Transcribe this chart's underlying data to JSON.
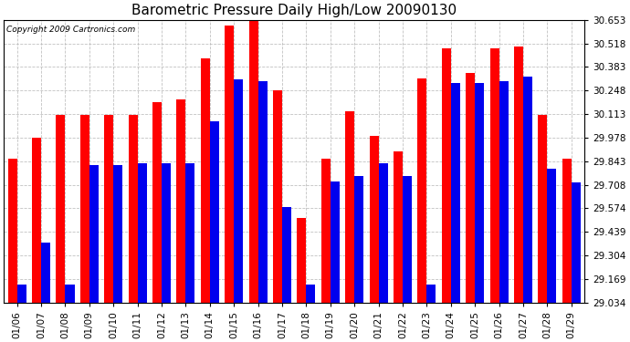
{
  "title": "Barometric Pressure Daily High/Low 20090130",
  "copyright": "Copyright 2009 Cartronics.com",
  "dates": [
    "01/06",
    "01/07",
    "01/08",
    "01/09",
    "01/10",
    "01/11",
    "01/12",
    "01/13",
    "01/14",
    "01/15",
    "01/16",
    "01/17",
    "01/18",
    "01/19",
    "01/20",
    "01/21",
    "01/22",
    "01/23",
    "01/24",
    "01/25",
    "01/26",
    "01/27",
    "01/28",
    "01/29"
  ],
  "highs": [
    29.86,
    29.98,
    30.11,
    30.11,
    30.11,
    30.11,
    30.18,
    30.2,
    30.43,
    30.62,
    30.65,
    30.25,
    29.52,
    29.86,
    30.13,
    29.99,
    29.9,
    30.32,
    30.49,
    30.35,
    30.49,
    30.5,
    30.11,
    29.86
  ],
  "lows": [
    29.14,
    29.38,
    29.14,
    29.82,
    29.82,
    29.83,
    29.83,
    29.83,
    30.07,
    30.31,
    30.3,
    29.58,
    29.14,
    29.73,
    29.76,
    29.83,
    29.76,
    29.14,
    30.29,
    30.29,
    30.3,
    30.33,
    29.8,
    29.72
  ],
  "high_color": "#FF0000",
  "low_color": "#0000EE",
  "bg_color": "#FFFFFF",
  "grid_color": "#BBBBBB",
  "ymin": 29.034,
  "ymax": 30.653,
  "yticks": [
    29.034,
    29.169,
    29.304,
    29.439,
    29.574,
    29.708,
    29.843,
    29.978,
    30.113,
    30.248,
    30.383,
    30.518,
    30.653
  ],
  "title_fontsize": 11,
  "tick_fontsize": 7.5,
  "copyright_fontsize": 6.5,
  "bar_width": 0.38
}
